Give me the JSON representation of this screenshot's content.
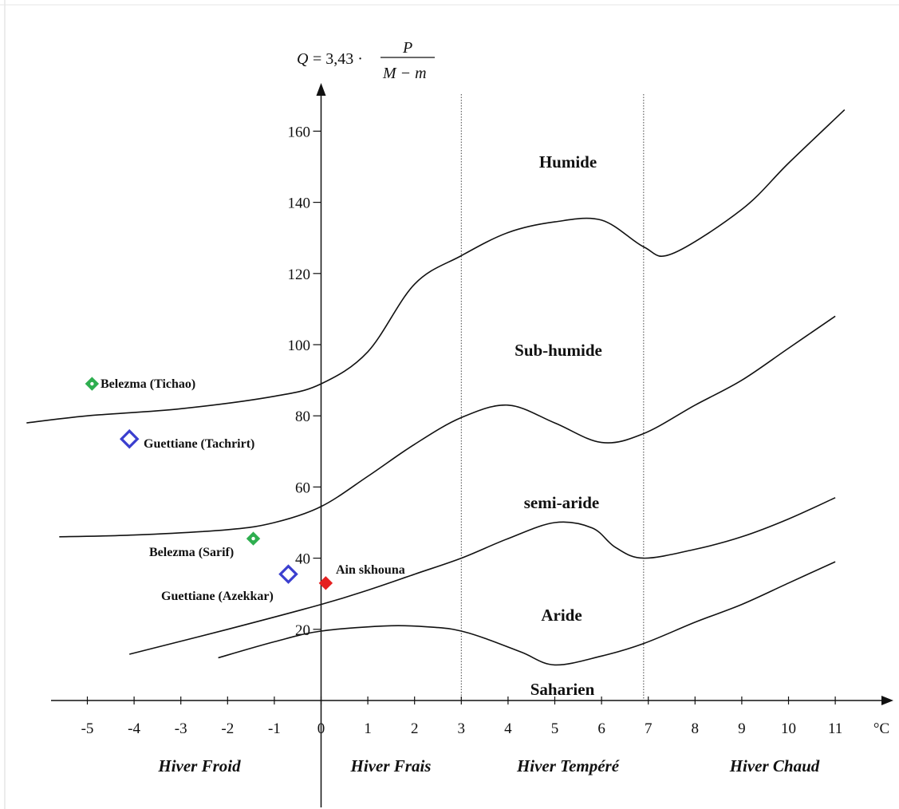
{
  "chart_data": {
    "type": "scatter",
    "title": "",
    "formula": {
      "lhs": "Q",
      "eq": "= 3,43 ·",
      "numerator": "P",
      "denominator": "M − m"
    },
    "xunit": "°C",
    "xlim": [
      -5.8,
      11.9
    ],
    "ylim": [
      0,
      170
    ],
    "x_ticks": [
      -5,
      -4,
      -3,
      -2,
      -1,
      0,
      1,
      2,
      3,
      4,
      5,
      6,
      7,
      8,
      9,
      10,
      11
    ],
    "y_ticks": [
      20,
      40,
      60,
      80,
      100,
      120,
      140,
      160
    ],
    "x_tick_labels": [
      "-5",
      "-4",
      "-3",
      "-2",
      "-1",
      "0",
      "1",
      "2",
      "3",
      "4",
      "5",
      "6",
      "7",
      "8",
      "9",
      "10",
      "11"
    ],
    "y_tick_labels": [
      "20",
      "40",
      "60",
      "80",
      "100",
      "120",
      "140",
      "160"
    ],
    "dividers_x": [
      3,
      6.9
    ],
    "zones": [
      "Humide",
      "Sub-humide",
      "semi-aride",
      "Aride",
      "Saharien"
    ],
    "periods": [
      "Hiver Froid",
      "Hiver Frais",
      "Hiver Tempéré",
      "Hiver Chaud"
    ],
    "boundaries": [
      {
        "points": [
          [
            -6.3,
            78
          ],
          [
            -5,
            80
          ],
          [
            -3,
            82
          ],
          [
            -1,
            85.5
          ],
          [
            0,
            89
          ],
          [
            1,
            98
          ],
          [
            2,
            117
          ],
          [
            3,
            125
          ],
          [
            4,
            131.5
          ],
          [
            5,
            134.5
          ],
          [
            6,
            135
          ],
          [
            6.9,
            127.5
          ],
          [
            7.5,
            125.5
          ],
          [
            9,
            138
          ],
          [
            10,
            151
          ],
          [
            11.2,
            166
          ]
        ]
      },
      {
        "points": [
          [
            -5.6,
            46
          ],
          [
            -4,
            46.5
          ],
          [
            -2,
            48
          ],
          [
            -1,
            50
          ],
          [
            0,
            54.5
          ],
          [
            1,
            63
          ],
          [
            2,
            72
          ],
          [
            3,
            79.5
          ],
          [
            4,
            83
          ],
          [
            5,
            78
          ],
          [
            6,
            72.5
          ],
          [
            6.9,
            75
          ],
          [
            8,
            83
          ],
          [
            9,
            90
          ],
          [
            10,
            99
          ],
          [
            11,
            108
          ]
        ]
      },
      {
        "points": [
          [
            -4.1,
            13
          ],
          [
            -2,
            20
          ],
          [
            0,
            27
          ],
          [
            1,
            31
          ],
          [
            2,
            35.5
          ],
          [
            3,
            40
          ],
          [
            4,
            45.5
          ],
          [
            5,
            50
          ],
          [
            5.8,
            48.5
          ],
          [
            6.3,
            43
          ],
          [
            6.9,
            40
          ],
          [
            8,
            42.5
          ],
          [
            9,
            46
          ],
          [
            10,
            51
          ],
          [
            11,
            57
          ]
        ]
      },
      {
        "points": [
          [
            -2.2,
            12
          ],
          [
            -1,
            16.5
          ],
          [
            0,
            19.5
          ],
          [
            1.5,
            21
          ],
          [
            2.5,
            20.5
          ],
          [
            3,
            19.5
          ],
          [
            3.5,
            17.5
          ],
          [
            4.3,
            13.5
          ],
          [
            5,
            10
          ],
          [
            6,
            12.5
          ],
          [
            6.9,
            16
          ],
          [
            8,
            22
          ],
          [
            9,
            27
          ],
          [
            10,
            33
          ],
          [
            11,
            39
          ]
        ]
      }
    ],
    "points": [
      {
        "label": "Belezma (Tichao)",
        "x": -4.9,
        "y": 89,
        "color": "#2eae4f",
        "size": "small"
      },
      {
        "label": "Guettiane (Tachrirt)",
        "x": -4.1,
        "y": 73.5,
        "color": "#3b3fcf",
        "size": "large"
      },
      {
        "label": "Belezma (Sarif)",
        "x": -1.45,
        "y": 45.5,
        "color": "#2eae4f",
        "size": "small"
      },
      {
        "label": "Guettiane (Azekkar)",
        "x": -0.7,
        "y": 35.5,
        "color": "#3b3fcf",
        "size": "large"
      },
      {
        "label": "Ain skhouna",
        "x": 0.1,
        "y": 33,
        "color": "#e52020",
        "size": "small-solid"
      }
    ]
  }
}
